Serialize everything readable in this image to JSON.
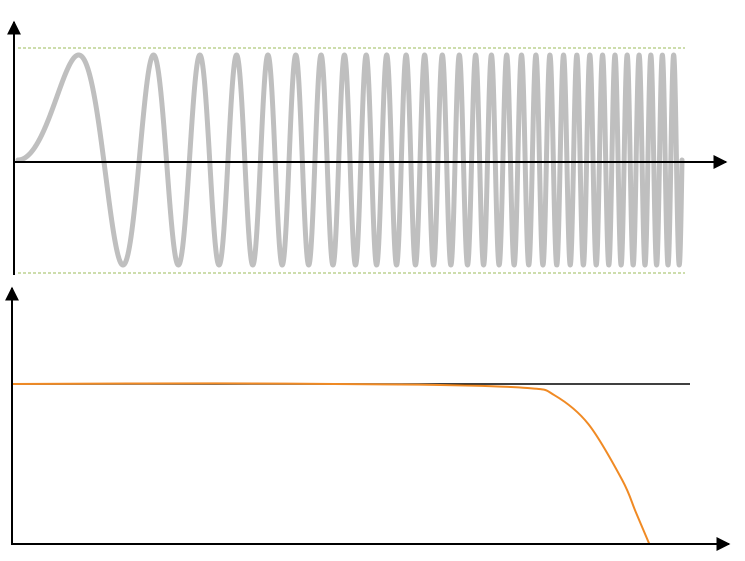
{
  "colors": {
    "axis": "#000000",
    "chirp": "#bfbfbf",
    "envelope": "#9bbb59",
    "response": "#f08a24",
    "reference": "#000000"
  },
  "top_panel": {
    "signal": "chirp",
    "amplitude": 1,
    "cycles": 30,
    "envelope_style": "dashed"
  },
  "bottom_panel": {
    "reference_level": 1,
    "response_points": [
      [
        0,
        1.0
      ],
      [
        0.3,
        1.004
      ],
      [
        0.6,
        0.996
      ],
      [
        0.76,
        0.975
      ],
      [
        0.8,
        0.93
      ],
      [
        0.85,
        0.75
      ],
      [
        0.9,
        0.4
      ],
      [
        0.92,
        0.2
      ],
      [
        0.94,
        0.0
      ]
    ]
  }
}
